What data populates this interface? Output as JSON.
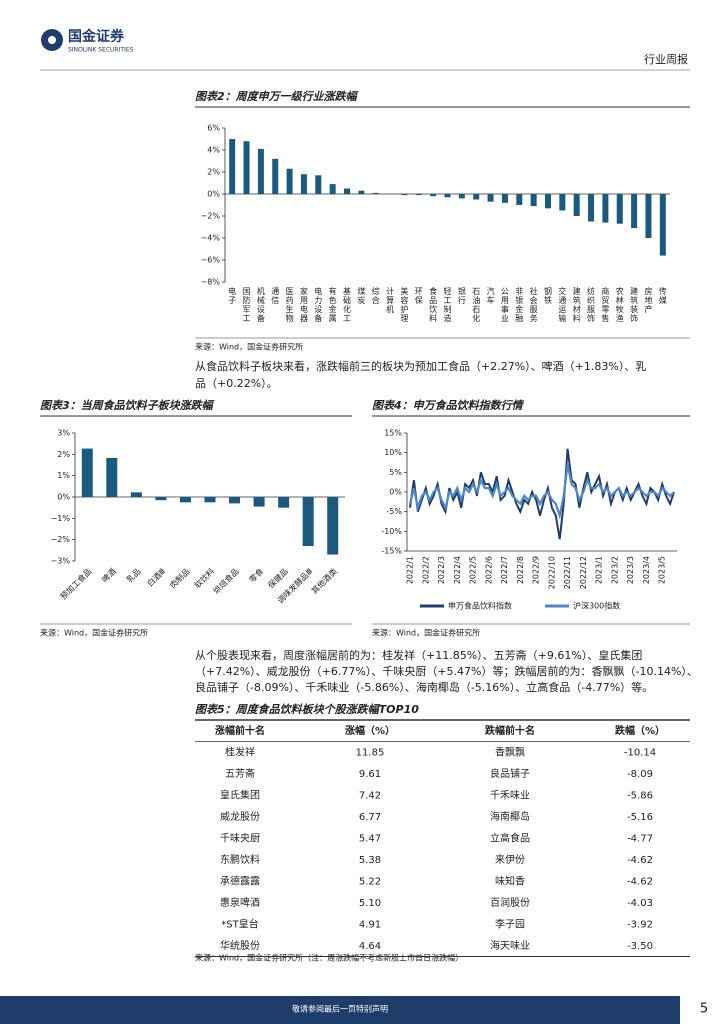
{
  "header": {
    "brand": "国金证券",
    "brand_en": "SINOLINK SECURITIES",
    "report_type": "行业周报"
  },
  "figure2": {
    "type": "bar",
    "title": "图表2：周度申万一级行业涨跌幅",
    "color": "#1b5a7e",
    "categories": [
      "电子",
      "国防军工",
      "机械设备",
      "通信",
      "医药生物",
      "家用电器",
      "电力设备",
      "有色金属",
      "基础化工",
      "煤炭",
      "综合",
      "计算机",
      "美容护理",
      "环保",
      "食品饮料",
      "轻工制造",
      "银行",
      "石油石化",
      "汽车",
      "公用事业",
      "非银金融",
      "社会服务",
      "钢铁",
      "交通运输",
      "建筑材料",
      "纺织服饰",
      "商贸零售",
      "农林牧渔",
      "建筑装饰",
      "房地产",
      "传媒"
    ],
    "values": [
      5.0,
      4.8,
      4.1,
      3.2,
      2.3,
      1.8,
      1.7,
      0.9,
      0.5,
      0.3,
      0.1,
      0.0,
      -0.1,
      -0.1,
      -0.2,
      -0.3,
      -0.4,
      -0.5,
      -0.7,
      -0.8,
      -1.0,
      -1.1,
      -1.3,
      -1.5,
      -2.0,
      -2.5,
      -2.6,
      -2.7,
      -3.1,
      -4.0,
      -5.6
    ],
    "ylim": [
      -8,
      6
    ],
    "yticks": [
      {
        "value": 6,
        "label": "6%"
      },
      {
        "value": 4,
        "label": "4%"
      },
      {
        "value": 2,
        "label": "2%"
      },
      {
        "value": 0,
        "label": "0%"
      },
      {
        "value": -2,
        "label": "−2%"
      },
      {
        "value": -4,
        "label": "−4%"
      },
      {
        "value": -6,
        "label": "−6%"
      },
      {
        "value": -8,
        "label": "−8%"
      }
    ],
    "source": "来源：Wind，国金证券研究所"
  },
  "paragraph1": [
    "从食品饮料子板块来看，涨跌幅前三的板块为预加工食品（+2.27%）、啤酒（+1.83%）、乳",
    "品（+0.22%）。"
  ],
  "figure3": {
    "type": "bar",
    "title": "图表3：当周食品饮料子板块涨跌幅",
    "color": "#1b5a7e",
    "categories": [
      "预加工食品",
      "啤酒",
      "乳品",
      "白酒Ⅲ",
      "肉制品",
      "软饮料",
      "烘焙食品",
      "零食",
      "保健品",
      "调味发酵品Ⅲ",
      "其他酒类"
    ],
    "values": [
      2.27,
      1.83,
      0.22,
      -0.15,
      -0.25,
      -0.25,
      -0.3,
      -0.45,
      -0.5,
      -2.3,
      -2.7
    ],
    "ylim": [
      -3,
      3
    ],
    "yticks": [
      {
        "value": 3,
        "label": "3%"
      },
      {
        "value": 2,
        "label": "2%"
      },
      {
        "value": 1,
        "label": "1%"
      },
      {
        "value": 0,
        "label": "0%"
      },
      {
        "value": -1,
        "label": "−1%"
      },
      {
        "value": -2,
        "label": "−2%"
      },
      {
        "value": -3,
        "label": "−3%"
      }
    ],
    "source": "来源：Wind，国金证券研究所"
  },
  "figure4": {
    "type": "line",
    "title": "图表4：申万食品饮料指数行情",
    "categories": [
      "2022/1",
      null,
      null,
      null,
      "2022/2",
      null,
      null,
      null,
      "2022/3",
      null,
      null,
      null,
      "2022/4",
      null,
      null,
      null,
      "2022/5",
      null,
      null,
      null,
      "2022/6",
      null,
      null,
      null,
      "2022/7",
      null,
      null,
      null,
      "2022/8",
      null,
      null,
      null,
      "2022/9",
      null,
      null,
      null,
      "2022/10",
      null,
      null,
      null,
      "2022/11",
      null,
      null,
      null,
      "2022/12",
      null,
      null,
      null,
      "2023/1",
      null,
      null,
      null,
      "2023/2",
      null,
      null,
      null,
      "2023/3",
      null,
      null,
      null,
      "2023/4",
      null,
      null,
      null,
      "2023/5",
      null,
      null,
      null
    ],
    "series": [
      {
        "name": "申万食品饮料指数",
        "color": "#1f3d6b",
        "values": [
          -4,
          3,
          -5,
          -2,
          1,
          -3,
          -1,
          2,
          -3,
          -5,
          1,
          -2,
          0,
          -4,
          2,
          1,
          3,
          -1,
          5,
          2,
          2,
          0,
          4,
          -2,
          -1,
          3,
          0,
          -3,
          -5,
          -2,
          -3,
          0,
          -2,
          -6,
          -2,
          1,
          -4,
          -6,
          -12,
          -3,
          11,
          3,
          2,
          -4,
          1,
          5,
          0,
          2,
          4,
          -1,
          2,
          -3,
          0,
          1,
          -2,
          1,
          -2,
          0,
          2,
          -1,
          -3,
          1,
          0,
          -2,
          2,
          -1,
          -3,
          0
        ]
      },
      {
        "name": "沪深300指数",
        "color": "#4f86c6",
        "values": [
          -3,
          1,
          -4,
          -1,
          0,
          -2,
          0,
          1,
          -2,
          -4,
          0,
          -1,
          1,
          -2,
          1,
          0,
          2,
          0,
          3,
          1,
          1,
          -1,
          2,
          -1,
          0,
          1,
          -1,
          -2,
          -3,
          -1,
          -2,
          -1,
          -1,
          -3,
          -1,
          0,
          -2,
          -3,
          -6,
          -1,
          7,
          2,
          1,
          -2,
          0,
          3,
          1,
          1,
          2,
          0,
          1,
          -1,
          0,
          1,
          -1,
          0,
          -1,
          0,
          1,
          0,
          -1,
          0,
          0,
          -1,
          1,
          0,
          -1,
          0
        ]
      }
    ],
    "ylim": [
      -15,
      15
    ],
    "yticks": [
      {
        "value": 15,
        "label": "15%"
      },
      {
        "value": 10,
        "label": "10%"
      },
      {
        "value": 5,
        "label": "5%"
      },
      {
        "value": 0,
        "label": "0%"
      },
      {
        "value": -5,
        "label": "-5%"
      },
      {
        "value": -10,
        "label": "-10%"
      },
      {
        "value": -15,
        "label": "-15%"
      }
    ],
    "source": "来源：Wind，国金证券研究所"
  },
  "paragraph2": [
    "从个股表现来看，周度涨幅居前的为：桂发祥（+11.85%）、五芳斋（+9.61%）、皇氏集团",
    "（+7.42%）、威龙股份（+6.77%）、千味央厨（+5.47%）等；跌幅居前的为：香飘飘（-10.14%）、",
    "良品铺子（-8.09%）、千禾味业（-5.86%）、海南椰岛（-5.16%）、立高食品（-4.77%）等。"
  ],
  "table": {
    "title": "图表5：周度食品饮料板块个股涨跌幅TOP10",
    "header": [
      "涨幅前十名",
      "涨幅（%）",
      "跌幅前十名",
      "跌幅（%）"
    ],
    "rows": [
      [
        "桂发祥",
        "11.85",
        "香飘飘",
        "-10.14"
      ],
      [
        "五芳斋",
        "9.61",
        "良品铺子",
        "-8.09"
      ],
      [
        "皇氏集团",
        "7.42",
        "千禾味业",
        "-5.86"
      ],
      [
        "威龙股份",
        "6.77",
        "海南椰岛",
        "-5.16"
      ],
      [
        "千味央厨",
        "5.47",
        "立高食品",
        "-4.77"
      ],
      [
        "东鹏饮料",
        "5.38",
        "来伊份",
        "-4.62"
      ],
      [
        "承德露露",
        "5.22",
        "味知香",
        "-4.62"
      ],
      [
        "惠泉啤酒",
        "5.10",
        "百润股份",
        "-4.03"
      ],
      [
        "*ST皇台",
        "4.91",
        "李子园",
        "-3.92"
      ],
      [
        "华统股份",
        "4.64",
        "海天味业",
        "-3.50"
      ]
    ],
    "source": "来源：Wind，国金证券研究所（注：周涨跌幅不考虑新股上市首日涨跌幅）"
  },
  "footer": {
    "notice": "敬请参阅最后一页特别声明",
    "page": "5"
  }
}
